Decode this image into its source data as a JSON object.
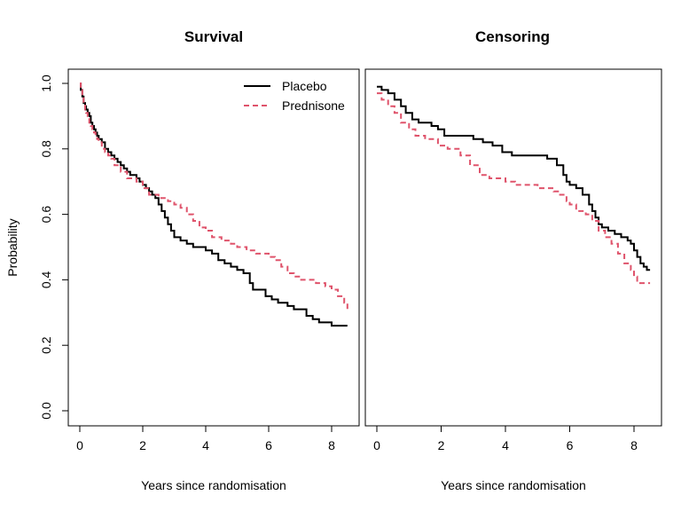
{
  "chart_data": [
    {
      "type": "line",
      "title": "Survival",
      "xlabel": "Years since randomisation",
      "ylabel": "Probability",
      "xlim": [
        0,
        8.5
      ],
      "ylim": [
        0,
        1
      ],
      "xticks": [
        "0",
        "2",
        "4",
        "6",
        "8"
      ],
      "yticks": [
        "0.0",
        "0.2",
        "0.4",
        "0.6",
        "0.8",
        "1.0"
      ],
      "grid": false,
      "legend": "top-right",
      "step": true,
      "series": [
        {
          "name": "Placebo",
          "color": "#000000",
          "dash": "solid",
          "x": [
            0,
            0.03,
            0.08,
            0.12,
            0.17,
            0.2,
            0.25,
            0.3,
            0.35,
            0.4,
            0.45,
            0.5,
            0.55,
            0.6,
            0.7,
            0.8,
            0.9,
            1.0,
            1.1,
            1.2,
            1.3,
            1.4,
            1.5,
            1.6,
            1.7,
            1.8,
            1.9,
            2.0,
            2.1,
            2.2,
            2.3,
            2.4,
            2.5,
            2.6,
            2.7,
            2.8,
            2.9,
            3.0,
            3.2,
            3.4,
            3.6,
            3.8,
            4.0,
            4.2,
            4.4,
            4.6,
            4.8,
            5.0,
            5.2,
            5.4,
            5.5,
            5.9,
            6.1,
            6.3,
            6.6,
            6.8,
            7.2,
            7.4,
            7.6,
            8.0,
            8.5
          ],
          "y": [
            1.0,
            0.98,
            0.96,
            0.94,
            0.93,
            0.92,
            0.91,
            0.9,
            0.88,
            0.87,
            0.86,
            0.85,
            0.84,
            0.83,
            0.82,
            0.8,
            0.79,
            0.78,
            0.77,
            0.76,
            0.75,
            0.74,
            0.73,
            0.72,
            0.72,
            0.71,
            0.7,
            0.69,
            0.68,
            0.67,
            0.66,
            0.65,
            0.63,
            0.61,
            0.59,
            0.57,
            0.55,
            0.53,
            0.52,
            0.51,
            0.5,
            0.5,
            0.49,
            0.48,
            0.46,
            0.45,
            0.44,
            0.43,
            0.42,
            0.39,
            0.37,
            0.35,
            0.34,
            0.33,
            0.32,
            0.31,
            0.29,
            0.28,
            0.27,
            0.26,
            0.26
          ]
        },
        {
          "name": "Prednisone",
          "color": "#DF536B",
          "dash": "dashed",
          "x": [
            0,
            0.03,
            0.08,
            0.12,
            0.17,
            0.2,
            0.25,
            0.3,
            0.35,
            0.4,
            0.45,
            0.5,
            0.55,
            0.6,
            0.7,
            0.8,
            0.9,
            1.0,
            1.1,
            1.3,
            1.5,
            1.8,
            2.0,
            2.2,
            2.5,
            2.8,
            3.0,
            3.2,
            3.4,
            3.6,
            3.8,
            4.0,
            4.2,
            4.5,
            4.8,
            5.0,
            5.3,
            5.6,
            6.0,
            6.2,
            6.4,
            6.6,
            6.8,
            7.0,
            7.5,
            7.8,
            8.0,
            8.2,
            8.4,
            8.5
          ],
          "y": [
            1.0,
            0.98,
            0.96,
            0.94,
            0.92,
            0.91,
            0.9,
            0.88,
            0.87,
            0.86,
            0.85,
            0.84,
            0.83,
            0.82,
            0.8,
            0.79,
            0.78,
            0.77,
            0.75,
            0.73,
            0.71,
            0.7,
            0.68,
            0.66,
            0.65,
            0.64,
            0.63,
            0.62,
            0.6,
            0.58,
            0.56,
            0.55,
            0.53,
            0.52,
            0.51,
            0.5,
            0.49,
            0.48,
            0.47,
            0.46,
            0.44,
            0.42,
            0.41,
            0.4,
            0.39,
            0.38,
            0.37,
            0.35,
            0.33,
            0.3
          ]
        }
      ],
      "legend_entries": [
        "Placebo",
        "Prednisone"
      ]
    },
    {
      "type": "line",
      "title": "Censoring",
      "xlabel": "Years since randomisation",
      "ylabel": "",
      "xlim": [
        0,
        8.5
      ],
      "ylim": [
        0,
        1
      ],
      "xticks": [
        "0",
        "2",
        "4",
        "6",
        "8"
      ],
      "grid": false,
      "step": true,
      "series": [
        {
          "name": "Placebo",
          "color": "#000000",
          "dash": "solid",
          "x": [
            0,
            0.15,
            0.35,
            0.55,
            0.75,
            0.9,
            1.1,
            1.3,
            1.5,
            1.7,
            1.9,
            2.1,
            2.4,
            2.7,
            3.0,
            3.3,
            3.6,
            3.9,
            4.2,
            4.5,
            5.0,
            5.3,
            5.6,
            5.8,
            5.9,
            6.0,
            6.2,
            6.4,
            6.6,
            6.7,
            6.8,
            6.9,
            7.0,
            7.2,
            7.4,
            7.6,
            7.8,
            7.9,
            8.0,
            8.1,
            8.2,
            8.3,
            8.4,
            8.5
          ],
          "y": [
            0.99,
            0.98,
            0.97,
            0.95,
            0.93,
            0.91,
            0.89,
            0.88,
            0.88,
            0.87,
            0.86,
            0.84,
            0.84,
            0.84,
            0.83,
            0.82,
            0.81,
            0.79,
            0.78,
            0.78,
            0.78,
            0.77,
            0.75,
            0.72,
            0.7,
            0.69,
            0.68,
            0.66,
            0.63,
            0.61,
            0.59,
            0.57,
            0.56,
            0.55,
            0.54,
            0.53,
            0.52,
            0.51,
            0.49,
            0.47,
            0.45,
            0.44,
            0.43,
            0.43
          ]
        },
        {
          "name": "Prednisone",
          "color": "#DF536B",
          "dash": "dashed",
          "x": [
            0,
            0.15,
            0.35,
            0.55,
            0.75,
            1.0,
            1.2,
            1.5,
            1.9,
            2.2,
            2.6,
            2.9,
            3.2,
            3.5,
            4.0,
            4.3,
            5.0,
            5.5,
            5.7,
            5.9,
            6.0,
            6.2,
            6.5,
            6.7,
            6.9,
            7.1,
            7.3,
            7.5,
            7.7,
            7.9,
            8.0,
            8.1,
            8.2,
            8.3,
            8.5
          ],
          "y": [
            0.97,
            0.95,
            0.93,
            0.91,
            0.88,
            0.86,
            0.84,
            0.83,
            0.81,
            0.8,
            0.78,
            0.75,
            0.72,
            0.71,
            0.7,
            0.69,
            0.68,
            0.67,
            0.66,
            0.64,
            0.63,
            0.61,
            0.6,
            0.58,
            0.55,
            0.53,
            0.51,
            0.48,
            0.45,
            0.43,
            0.41,
            0.39,
            0.39,
            0.39,
            0.39
          ]
        }
      ]
    }
  ]
}
